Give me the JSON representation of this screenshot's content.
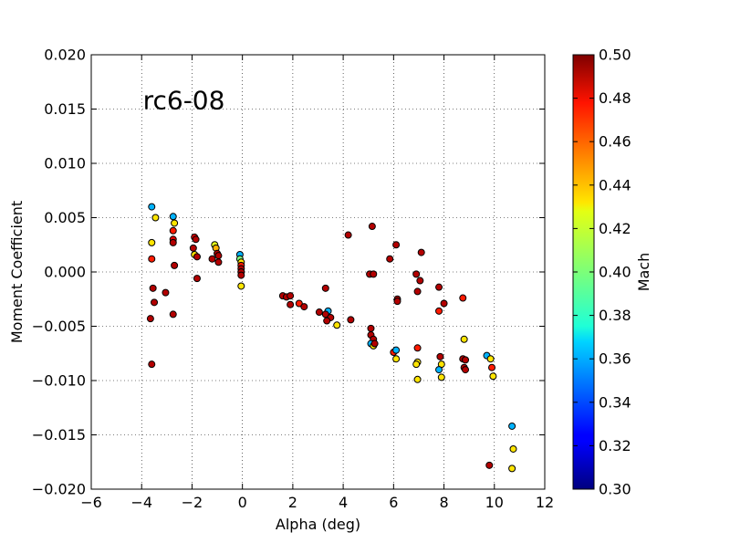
{
  "chart_data": {
    "type": "scatter",
    "annotation": "rc6-08",
    "xlabel": "Alpha (deg)",
    "ylabel": "Moment Coefficient",
    "xlim": [
      -6,
      12
    ],
    "ylim": [
      -0.02,
      0.02
    ],
    "x_ticks": [
      -6,
      -4,
      -2,
      0,
      2,
      4,
      6,
      8,
      10,
      12
    ],
    "x_tick_labels": [
      "−6",
      "−4",
      "−2",
      "0",
      "2",
      "4",
      "6",
      "8",
      "10",
      "12"
    ],
    "y_ticks": [
      -0.02,
      -0.015,
      -0.01,
      -0.005,
      0,
      0.005,
      0.01,
      0.015,
      0.02
    ],
    "y_tick_labels": [
      "−0.020",
      "−0.015",
      "−0.010",
      "−0.005",
      "0.000",
      "0.005",
      "0.010",
      "0.015",
      "0.020"
    ],
    "grid": true,
    "colorbar": {
      "label": "Mach",
      "range": [
        0.3,
        0.5
      ],
      "ticks": [
        0.3,
        0.32,
        0.34,
        0.36,
        0.38,
        0.4,
        0.42,
        0.44,
        0.46,
        0.48,
        0.5
      ],
      "tick_labels": [
        "0.30",
        "0.32",
        "0.34",
        "0.36",
        "0.38",
        "0.40",
        "0.42",
        "0.44",
        "0.46",
        "0.48",
        "0.50"
      ],
      "colormap": "jet"
    },
    "points": [
      {
        "x": -3.6,
        "y": 0.006,
        "mach": 0.36
      },
      {
        "x": -3.45,
        "y": 0.005,
        "mach": 0.43
      },
      {
        "x": -3.6,
        "y": 0.0027,
        "mach": 0.43
      },
      {
        "x": -3.6,
        "y": 0.0012,
        "mach": 0.47
      },
      {
        "x": -3.55,
        "y": -0.0015,
        "mach": 0.49
      },
      {
        "x": -3.5,
        "y": -0.0028,
        "mach": 0.49
      },
      {
        "x": -3.65,
        "y": -0.0043,
        "mach": 0.49
      },
      {
        "x": -3.05,
        "y": -0.0019,
        "mach": 0.49
      },
      {
        "x": -3.6,
        "y": -0.0085,
        "mach": 0.49
      },
      {
        "x": -2.75,
        "y": 0.0051,
        "mach": 0.36
      },
      {
        "x": -2.7,
        "y": 0.0045,
        "mach": 0.43
      },
      {
        "x": -2.75,
        "y": 0.0038,
        "mach": 0.47
      },
      {
        "x": -2.75,
        "y": 0.003,
        "mach": 0.48
      },
      {
        "x": -2.75,
        "y": 0.0027,
        "mach": 0.49
      },
      {
        "x": -2.7,
        "y": 0.0006,
        "mach": 0.49
      },
      {
        "x": -2.75,
        "y": -0.0039,
        "mach": 0.49
      },
      {
        "x": -1.9,
        "y": 0.0032,
        "mach": 0.48
      },
      {
        "x": -1.85,
        "y": 0.003,
        "mach": 0.49
      },
      {
        "x": -1.95,
        "y": 0.0022,
        "mach": 0.49
      },
      {
        "x": -1.9,
        "y": 0.0016,
        "mach": 0.43
      },
      {
        "x": -1.8,
        "y": 0.0014,
        "mach": 0.49
      },
      {
        "x": -1.8,
        "y": -0.0006,
        "mach": 0.49
      },
      {
        "x": -1.1,
        "y": 0.0025,
        "mach": 0.42
      },
      {
        "x": -1.05,
        "y": 0.0022,
        "mach": 0.44
      },
      {
        "x": -1.0,
        "y": 0.0017,
        "mach": 0.49
      },
      {
        "x": -0.95,
        "y": 0.0015,
        "mach": 0.49
      },
      {
        "x": -1.2,
        "y": 0.0012,
        "mach": 0.49
      },
      {
        "x": -0.95,
        "y": 0.0009,
        "mach": 0.49
      },
      {
        "x": -0.1,
        "y": 0.0016,
        "mach": 0.36
      },
      {
        "x": -0.1,
        "y": 0.0012,
        "mach": 0.4
      },
      {
        "x": -0.05,
        "y": 0.0009,
        "mach": 0.43
      },
      {
        "x": -0.05,
        "y": 0.0006,
        "mach": 0.47
      },
      {
        "x": -0.05,
        "y": 0.0003,
        "mach": 0.49
      },
      {
        "x": -0.05,
        "y": 0.0,
        "mach": 0.49
      },
      {
        "x": -0.05,
        "y": -0.0003,
        "mach": 0.49
      },
      {
        "x": -0.05,
        "y": -0.0013,
        "mach": 0.43
      },
      {
        "x": 1.6,
        "y": -0.0022,
        "mach": 0.49
      },
      {
        "x": 1.75,
        "y": -0.0023,
        "mach": 0.49
      },
      {
        "x": 1.9,
        "y": -0.0022,
        "mach": 0.49
      },
      {
        "x": 1.9,
        "y": -0.003,
        "mach": 0.49
      },
      {
        "x": 2.25,
        "y": -0.0029,
        "mach": 0.47
      },
      {
        "x": 2.45,
        "y": -0.0032,
        "mach": 0.49
      },
      {
        "x": 3.05,
        "y": -0.0037,
        "mach": 0.49
      },
      {
        "x": 3.3,
        "y": -0.0015,
        "mach": 0.49
      },
      {
        "x": 3.4,
        "y": -0.0036,
        "mach": 0.36
      },
      {
        "x": 3.3,
        "y": -0.0039,
        "mach": 0.49
      },
      {
        "x": 3.5,
        "y": -0.0042,
        "mach": 0.49
      },
      {
        "x": 3.35,
        "y": -0.0045,
        "mach": 0.49
      },
      {
        "x": 3.75,
        "y": -0.0049,
        "mach": 0.43
      },
      {
        "x": 4.2,
        "y": 0.0034,
        "mach": 0.49
      },
      {
        "x": 4.3,
        "y": -0.0044,
        "mach": 0.49
      },
      {
        "x": 5.15,
        "y": 0.0042,
        "mach": 0.49
      },
      {
        "x": 5.05,
        "y": -0.0002,
        "mach": 0.49
      },
      {
        "x": 5.2,
        "y": -0.0002,
        "mach": 0.49
      },
      {
        "x": 5.1,
        "y": -0.0052,
        "mach": 0.49
      },
      {
        "x": 5.1,
        "y": -0.0058,
        "mach": 0.49
      },
      {
        "x": 5.2,
        "y": -0.0062,
        "mach": 0.49
      },
      {
        "x": 5.1,
        "y": -0.0066,
        "mach": 0.36
      },
      {
        "x": 5.2,
        "y": -0.0068,
        "mach": 0.43
      },
      {
        "x": 5.25,
        "y": -0.0066,
        "mach": 0.49
      },
      {
        "x": 5.85,
        "y": 0.0012,
        "mach": 0.49
      },
      {
        "x": 6.1,
        "y": 0.0025,
        "mach": 0.49
      },
      {
        "x": 6.15,
        "y": -0.0025,
        "mach": 0.49
      },
      {
        "x": 6.15,
        "y": -0.0027,
        "mach": 0.49
      },
      {
        "x": 6.0,
        "y": -0.0074,
        "mach": 0.47
      },
      {
        "x": 6.1,
        "y": -0.0072,
        "mach": 0.36
      },
      {
        "x": 6.1,
        "y": -0.008,
        "mach": 0.43
      },
      {
        "x": 6.9,
        "y": -0.0002,
        "mach": 0.49
      },
      {
        "x": 7.05,
        "y": -0.0008,
        "mach": 0.49
      },
      {
        "x": 6.95,
        "y": -0.0018,
        "mach": 0.49
      },
      {
        "x": 7.1,
        "y": 0.0018,
        "mach": 0.49
      },
      {
        "x": 6.95,
        "y": -0.007,
        "mach": 0.47
      },
      {
        "x": 6.95,
        "y": -0.0083,
        "mach": 0.43
      },
      {
        "x": 6.9,
        "y": -0.0085,
        "mach": 0.43
      },
      {
        "x": 6.95,
        "y": -0.0099,
        "mach": 0.43
      },
      {
        "x": 7.8,
        "y": -0.0014,
        "mach": 0.49
      },
      {
        "x": 7.8,
        "y": -0.0036,
        "mach": 0.47
      },
      {
        "x": 8.0,
        "y": -0.0029,
        "mach": 0.49
      },
      {
        "x": 7.85,
        "y": -0.0078,
        "mach": 0.49
      },
      {
        "x": 7.9,
        "y": -0.0085,
        "mach": 0.43
      },
      {
        "x": 7.8,
        "y": -0.009,
        "mach": 0.36
      },
      {
        "x": 7.9,
        "y": -0.0097,
        "mach": 0.43
      },
      {
        "x": 8.75,
        "y": -0.0024,
        "mach": 0.47
      },
      {
        "x": 8.8,
        "y": -0.0062,
        "mach": 0.43
      },
      {
        "x": 8.75,
        "y": -0.008,
        "mach": 0.49
      },
      {
        "x": 8.85,
        "y": -0.0081,
        "mach": 0.49
      },
      {
        "x": 8.8,
        "y": -0.0088,
        "mach": 0.49
      },
      {
        "x": 8.85,
        "y": -0.009,
        "mach": 0.49
      },
      {
        "x": 9.7,
        "y": -0.0077,
        "mach": 0.36
      },
      {
        "x": 9.85,
        "y": -0.008,
        "mach": 0.43
      },
      {
        "x": 9.9,
        "y": -0.0088,
        "mach": 0.47
      },
      {
        "x": 9.95,
        "y": -0.0096,
        "mach": 0.43
      },
      {
        "x": 9.8,
        "y": -0.0178,
        "mach": 0.49
      },
      {
        "x": 10.7,
        "y": -0.0142,
        "mach": 0.36
      },
      {
        "x": 10.75,
        "y": -0.0163,
        "mach": 0.43
      },
      {
        "x": 10.7,
        "y": -0.0181,
        "mach": 0.43
      }
    ]
  }
}
